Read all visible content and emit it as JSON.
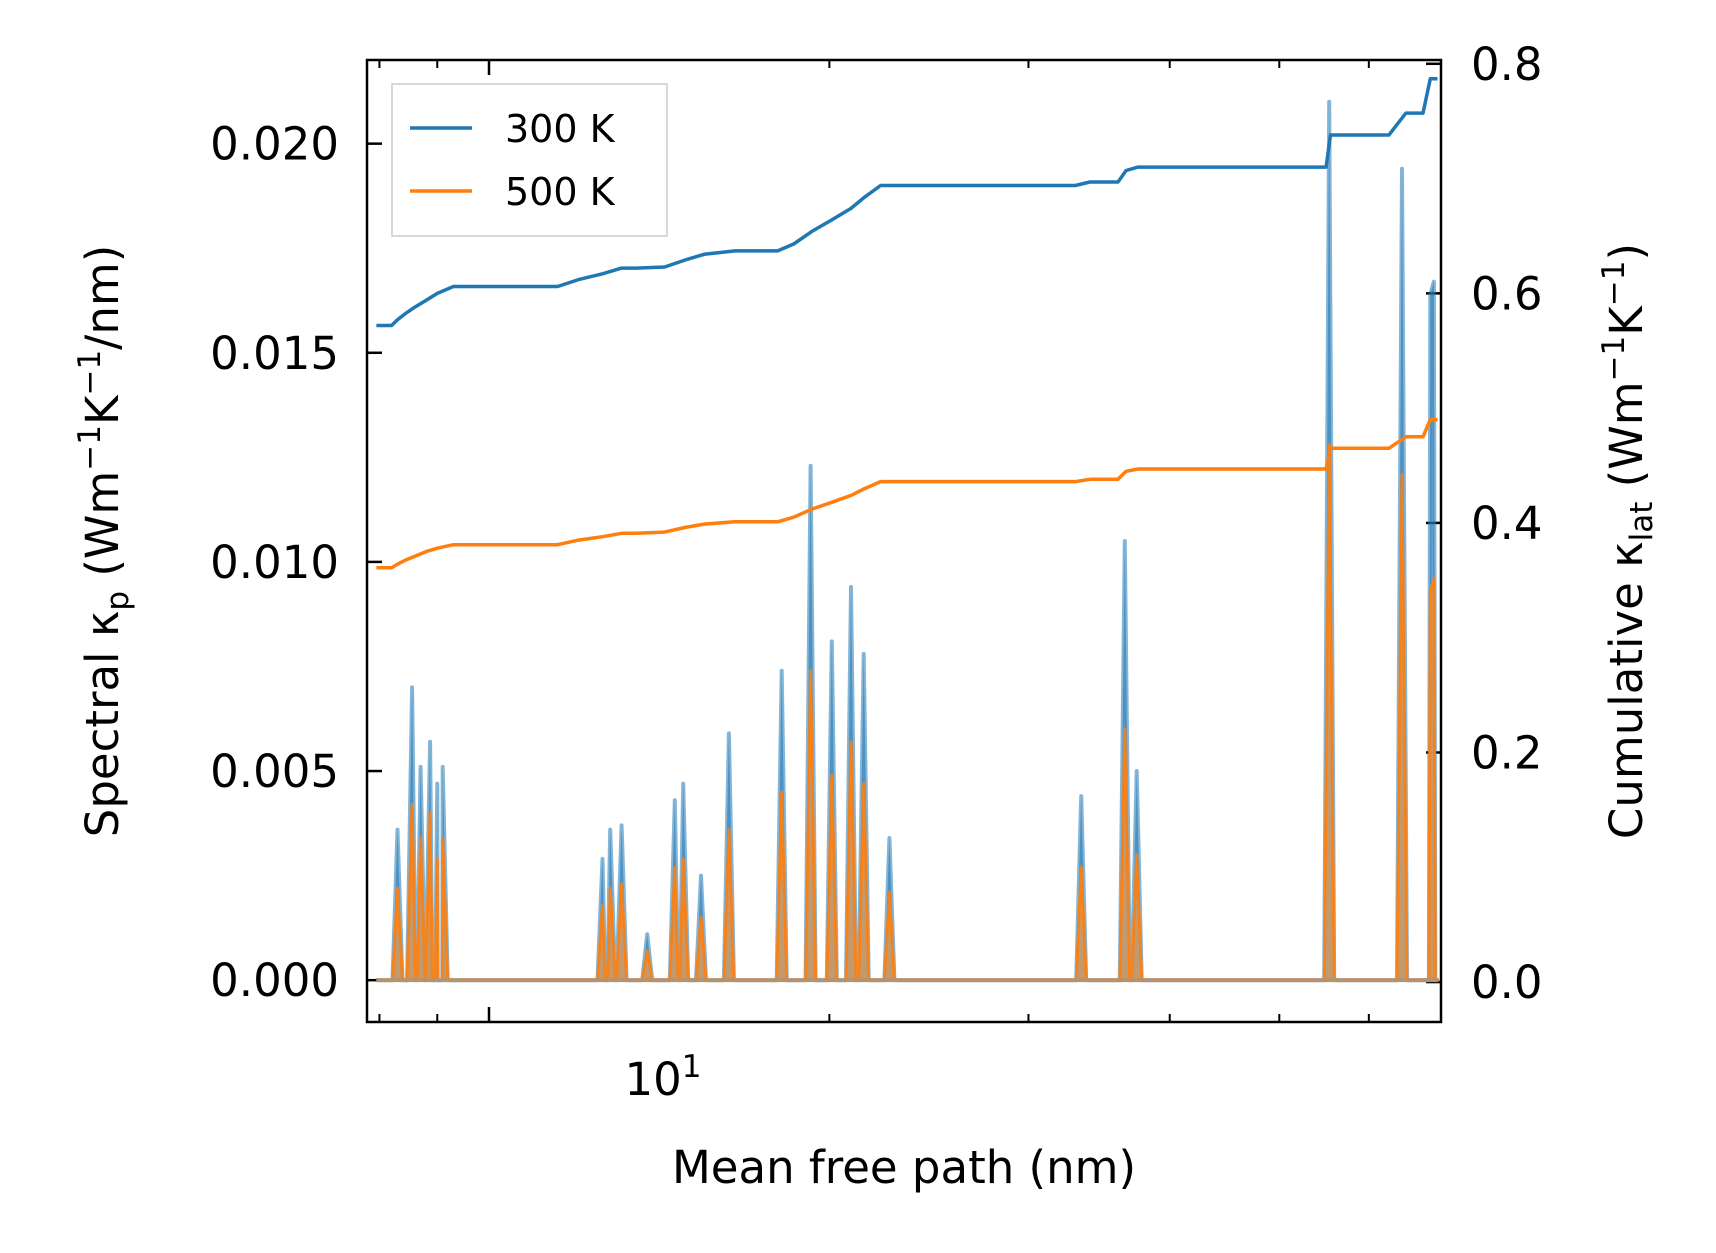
{
  "chart_data": {
    "type": "line",
    "xscale": "log",
    "xlim": [
      7.8,
      69.5
    ],
    "xlabel": "Mean free path (nm)",
    "x_tick_label": "10",
    "x_tick_label_exp": "1",
    "ylabel_left": {
      "pre": "Spectral κ",
      "sub": "p",
      "mid1": " (Wm",
      "sup1": "−1",
      "mid2": "K",
      "sup2": "−1",
      "post": "/nm)"
    },
    "ylabel_right": {
      "pre": "Cumulative κ",
      "sub": "lat",
      "mid1": " (Wm",
      "sup1": "−1",
      "mid2": "K",
      "sup2": "−1",
      "post": ")"
    },
    "ylim_left": [
      -0.001,
      0.022
    ],
    "ylim_right": [
      -0.0348,
      0.8033
    ],
    "yticks_left": [
      "0.000",
      "0.005",
      "0.010",
      "0.015",
      "0.020"
    ],
    "yticks_right": [
      "0.0",
      "0.2",
      "0.4",
      "0.6",
      "0.8"
    ],
    "legend": {
      "position": "top-left",
      "entries": [
        "300 K",
        "500 K"
      ]
    },
    "colors": {
      "s300": "#1f77b4",
      "s500": "#ff7f0e",
      "fill": "#c5996a"
    },
    "spectral_peaks": [
      {
        "x": 8.3,
        "y300": 0.0036,
        "y500": 0.0022
      },
      {
        "x": 8.55,
        "y300": 0.007,
        "y500": 0.0042
      },
      {
        "x": 8.7,
        "y300": 0.0051,
        "y500": 0.0034
      },
      {
        "x": 8.87,
        "y300": 0.0057,
        "y500": 0.004
      },
      {
        "x": 9.0,
        "y300": 0.0047,
        "y500": 0.0029
      },
      {
        "x": 9.1,
        "y300": 0.0051,
        "y500": 0.0034
      },
      {
        "x": 12.6,
        "y300": 0.0029,
        "y500": 0.0018
      },
      {
        "x": 12.8,
        "y300": 0.0036,
        "y500": 0.0022
      },
      {
        "x": 13.1,
        "y300": 0.0037,
        "y500": 0.0023
      },
      {
        "x": 13.8,
        "y300": 0.0011,
        "y500": 0.0007
      },
      {
        "x": 14.6,
        "y300": 0.0043,
        "y500": 0.0027
      },
      {
        "x": 14.85,
        "y300": 0.0047,
        "y500": 0.0029
      },
      {
        "x": 15.4,
        "y300": 0.0025,
        "y500": 0.0015
      },
      {
        "x": 16.3,
        "y300": 0.0059,
        "y500": 0.0036
      },
      {
        "x": 18.15,
        "y300": 0.0074,
        "y500": 0.0045
      },
      {
        "x": 19.25,
        "y300": 0.0123,
        "y500": 0.0074
      },
      {
        "x": 20.1,
        "y300": 0.0081,
        "y500": 0.0049
      },
      {
        "x": 20.9,
        "y300": 0.0094,
        "y500": 0.0057
      },
      {
        "x": 21.45,
        "y300": 0.0078,
        "y500": 0.0047
      },
      {
        "x": 22.6,
        "y300": 0.0034,
        "y500": 0.0021
      },
      {
        "x": 33.4,
        "y300": 0.0044,
        "y500": 0.0027
      },
      {
        "x": 36.5,
        "y300": 0.0105,
        "y500": 0.006
      },
      {
        "x": 37.4,
        "y300": 0.005,
        "y500": 0.003
      },
      {
        "x": 55.35,
        "y300": 0.021,
        "y500": 0.0128
      },
      {
        "x": 64.2,
        "y300": 0.0194,
        "y500": 0.0121
      },
      {
        "x": 68.0,
        "y300": 0.0164,
        "y500": 0.0093
      },
      {
        "x": 68.5,
        "y300": 0.0167,
        "y500": 0.0096
      }
    ],
    "cumulative_300K": {
      "x": [
        7.95,
        8.2,
        8.3,
        8.45,
        8.6,
        8.8,
        9.0,
        9.3,
        11.5,
        12.0,
        12.6,
        13.1,
        13.5,
        14.3,
        14.9,
        15.5,
        16.5,
        18.0,
        18.6,
        19.3,
        20.1,
        20.9,
        21.5,
        22.2,
        23.3,
        33.0,
        34.0,
        36.0,
        36.6,
        37.5,
        55.0,
        55.5,
        62.5,
        64.7,
        67.0,
        68.0,
        69.0
      ],
      "y": [
        0.572,
        0.572,
        0.577,
        0.583,
        0.588,
        0.594,
        0.6,
        0.606,
        0.606,
        0.612,
        0.617,
        0.622,
        0.622,
        0.623,
        0.629,
        0.634,
        0.637,
        0.637,
        0.643,
        0.654,
        0.664,
        0.674,
        0.684,
        0.694,
        0.694,
        0.694,
        0.697,
        0.697,
        0.707,
        0.71,
        0.71,
        0.738,
        0.738,
        0.757,
        0.757,
        0.787,
        0.787
      ]
    },
    "cumulative_500K": {
      "x": [
        7.95,
        8.2,
        8.3,
        8.45,
        8.6,
        8.8,
        9.0,
        9.3,
        11.5,
        12.0,
        12.6,
        13.1,
        13.5,
        14.3,
        14.9,
        15.5,
        16.5,
        18.0,
        18.6,
        19.3,
        20.1,
        20.9,
        21.5,
        22.2,
        23.3,
        33.0,
        34.0,
        36.0,
        36.6,
        37.5,
        55.0,
        55.5,
        62.5,
        64.7,
        67.0,
        68.0,
        69.0
      ],
      "y": [
        0.361,
        0.361,
        0.364,
        0.368,
        0.371,
        0.375,
        0.378,
        0.381,
        0.381,
        0.385,
        0.388,
        0.391,
        0.391,
        0.392,
        0.396,
        0.399,
        0.401,
        0.401,
        0.405,
        0.412,
        0.418,
        0.424,
        0.43,
        0.436,
        0.436,
        0.436,
        0.438,
        0.438,
        0.445,
        0.447,
        0.447,
        0.465,
        0.465,
        0.475,
        0.475,
        0.49,
        0.49
      ]
    }
  }
}
